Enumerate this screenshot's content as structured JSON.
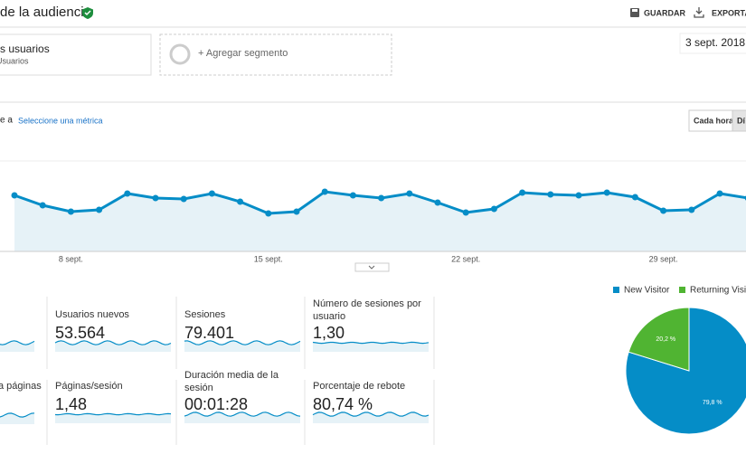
{
  "header": {
    "title": "de la audiencia",
    "save": "GUARDAR",
    "export": "EXPORTAR"
  },
  "segments": {
    "active": "s usuarios",
    "active_sub": "Usuarios",
    "add": "+ Agregar segmento",
    "date_range": "3 sept. 2018 -"
  },
  "controls": {
    "compare": "e a",
    "select_metric": "Seleccione una métrica",
    "hourly": "Cada hora",
    "daily": "Dí"
  },
  "chart_data": [
    {
      "type": "line",
      "categories": [
        null,
        null,
        "8 sept.",
        null,
        null,
        null,
        null,
        null,
        null,
        "15 sept.",
        null,
        null,
        null,
        null,
        null,
        null,
        "22 sept.",
        null,
        null,
        null,
        null,
        null,
        null,
        "29 sept.",
        null,
        null,
        null
      ],
      "series": [
        {
          "color": "#058dc7",
          "values": [
            2480,
            2040,
            1760,
            1840,
            2560,
            2360,
            2320,
            2560,
            2200,
            1680,
            1760,
            2640,
            2480,
            2360,
            2560,
            2160,
            1720,
            1880,
            2600,
            2520,
            2480,
            2600,
            2400,
            1800,
            1840,
            2560,
            2360
          ]
        }
      ],
      "ylim": [
        0,
        4000
      ]
    },
    {
      "type": "pie",
      "categories": [
        "New Visitor",
        "Returning Visitor"
      ],
      "values": [
        79.8,
        20.2
      ],
      "value_labels": [
        "79,8 %",
        "20,2 %"
      ],
      "colors": [
        "#058dc7",
        "#50b432"
      ]
    }
  ],
  "metrics": [
    {
      "label": "Usuarios nuevos",
      "value": "53.564"
    },
    {
      "label": "Sesiones",
      "value": "79.401"
    },
    {
      "label": "Número de sesiones por usuario",
      "value": "1,30"
    },
    {
      "label": "a páginas",
      "value": null
    },
    {
      "label": "Páginas/sesión",
      "value": "1,48"
    },
    {
      "label": "Duración media de la sesión",
      "value": "00:01:28"
    },
    {
      "label": "Porcentaje de rebote",
      "value": "80,74 %"
    }
  ]
}
